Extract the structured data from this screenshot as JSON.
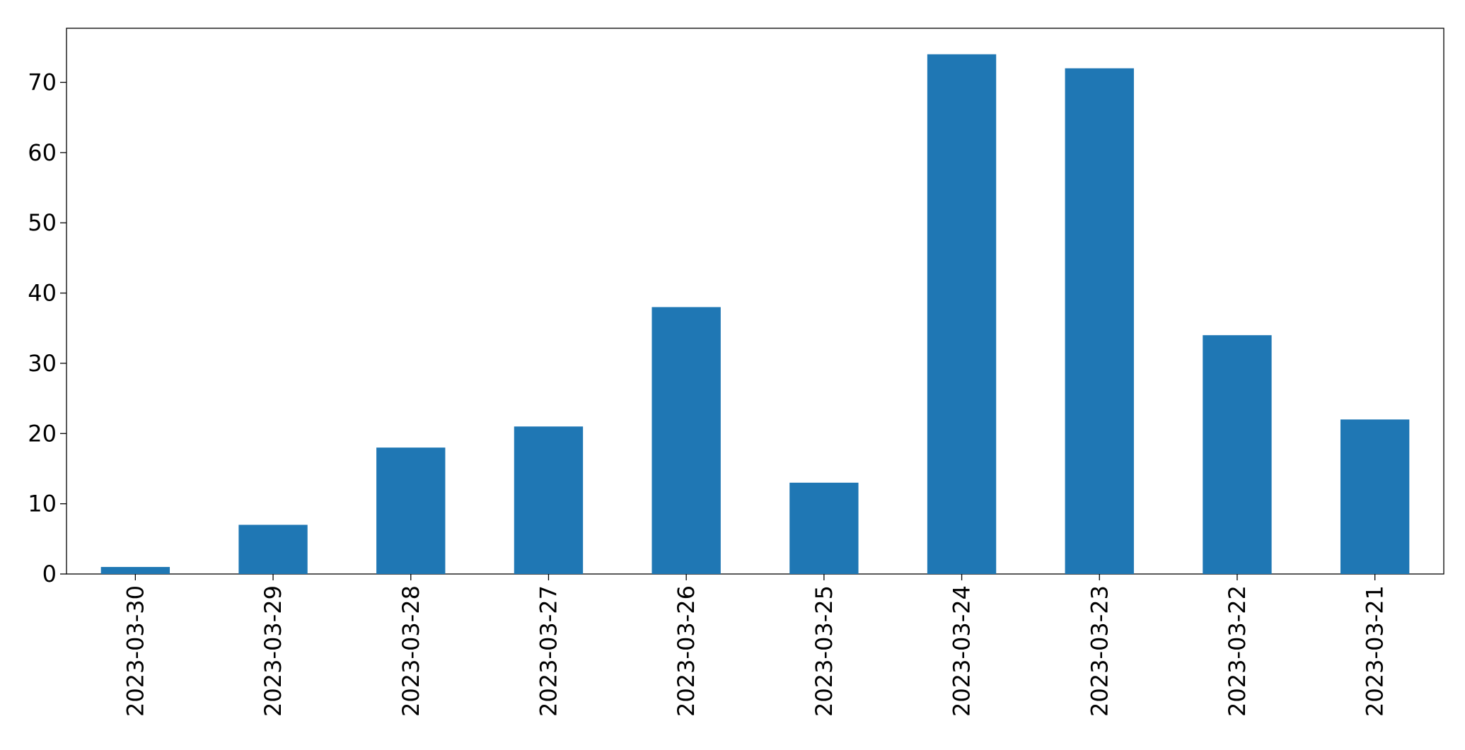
{
  "chart_data": {
    "type": "bar",
    "categories": [
      "2023-03-30",
      "2023-03-29",
      "2023-03-28",
      "2023-03-27",
      "2023-03-26",
      "2023-03-25",
      "2023-03-24",
      "2023-03-23",
      "2023-03-22",
      "2023-03-21"
    ],
    "values": [
      1,
      7,
      18,
      21,
      38,
      13,
      74,
      72,
      34,
      22
    ],
    "color": "#1f77b4",
    "ylim": [
      0,
      77.7
    ],
    "yticks": [
      0,
      10,
      20,
      30,
      40,
      50,
      60,
      70
    ],
    "grid": false
  }
}
